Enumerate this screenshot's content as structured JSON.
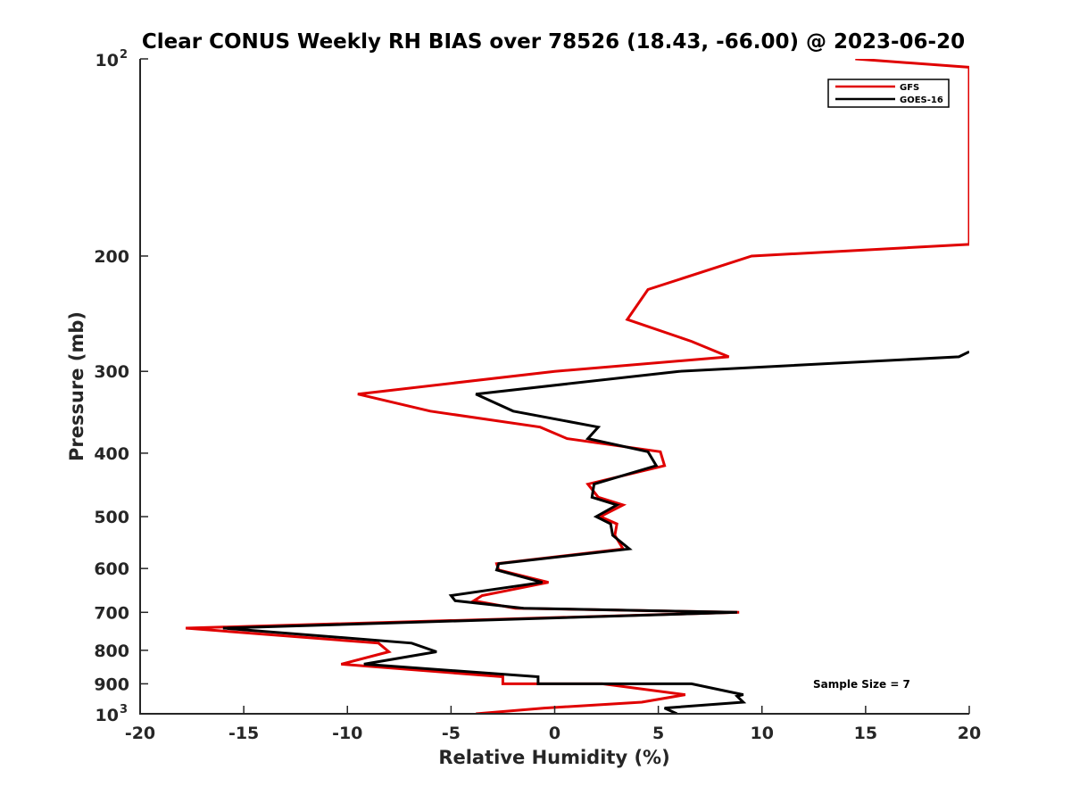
{
  "chart_data": {
    "type": "line",
    "title": "Clear CONUS Weekly RH BIAS over 78526 (18.43, -66.00) @ 2023-06-20",
    "xlabel": "Relative Humidity (%)",
    "ylabel": "Pressure (mb)",
    "xlim": [
      -20,
      20
    ],
    "ylim": [
      100,
      1000
    ],
    "y_scale": "log",
    "y_reversed": true,
    "grid": false,
    "legend_position": "top-right",
    "x_ticks": [
      "-20",
      "-15",
      "-10",
      "-5",
      "0",
      "5",
      "10",
      "15",
      "20"
    ],
    "x_tick_values": [
      -20,
      -15,
      -10,
      -5,
      0,
      5,
      10,
      15,
      20
    ],
    "y_ticks": [
      {
        "value": 100,
        "label": "10",
        "sup": "2"
      },
      {
        "value": 200,
        "label": "200",
        "sup": ""
      },
      {
        "value": 300,
        "label": "300",
        "sup": ""
      },
      {
        "value": 400,
        "label": "400",
        "sup": ""
      },
      {
        "value": 500,
        "label": "500",
        "sup": ""
      },
      {
        "value": 600,
        "label": "600",
        "sup": ""
      },
      {
        "value": 700,
        "label": "700",
        "sup": ""
      },
      {
        "value": 800,
        "label": "800",
        "sup": ""
      },
      {
        "value": 900,
        "label": "900",
        "sup": ""
      },
      {
        "value": 1000,
        "label": "10",
        "sup": "3"
      }
    ],
    "annotation": "Sample Size = 7",
    "series": [
      {
        "name": "GFS",
        "color": "#e00000",
        "points": [
          [
            14.5,
            100
          ],
          [
            20.0,
            103
          ],
          [
            20.0,
            192
          ],
          [
            9.5,
            200
          ],
          [
            4.5,
            225
          ],
          [
            3.5,
            250
          ],
          [
            6.6,
            270
          ],
          [
            8.4,
            285
          ],
          [
            0.0,
            300
          ],
          [
            -9.5,
            325
          ],
          [
            -6.0,
            345
          ],
          [
            -0.7,
            365
          ],
          [
            0.6,
            380
          ],
          [
            5.1,
            398
          ],
          [
            5.3,
            418
          ],
          [
            1.6,
            446
          ],
          [
            2.1,
            467
          ],
          [
            3.3,
            480
          ],
          [
            2.2,
            500
          ],
          [
            3.0,
            513
          ],
          [
            2.9,
            534
          ],
          [
            3.3,
            560
          ],
          [
            -2.8,
            590
          ],
          [
            -2.7,
            603
          ],
          [
            -0.3,
            630
          ],
          [
            -3.5,
            660
          ],
          [
            -3.9,
            672
          ],
          [
            -1.9,
            690
          ],
          [
            8.9,
            700
          ],
          [
            -17.8,
            740
          ],
          [
            -8.5,
            780
          ],
          [
            -8.0,
            804
          ],
          [
            -10.3,
            840
          ],
          [
            -2.5,
            878
          ],
          [
            -2.5,
            900
          ],
          [
            2.3,
            900
          ],
          [
            6.3,
            935
          ],
          [
            4.2,
            960
          ],
          [
            -0.5,
            980
          ],
          [
            -3.8,
            1000
          ]
        ]
      },
      {
        "name": "GOES-16",
        "color": "#000000",
        "points": [
          [
            20.0,
            280
          ],
          [
            19.5,
            285
          ],
          [
            6.0,
            300
          ],
          [
            -3.8,
            325
          ],
          [
            -2.0,
            345
          ],
          [
            2.1,
            365
          ],
          [
            1.6,
            380
          ],
          [
            4.5,
            398
          ],
          [
            4.9,
            418
          ],
          [
            1.9,
            446
          ],
          [
            1.8,
            467
          ],
          [
            3.0,
            480
          ],
          [
            2.0,
            500
          ],
          [
            2.7,
            513
          ],
          [
            2.8,
            534
          ],
          [
            3.6,
            560
          ],
          [
            -2.7,
            590
          ],
          [
            -2.8,
            603
          ],
          [
            -0.6,
            630
          ],
          [
            -5.0,
            660
          ],
          [
            -4.8,
            672
          ],
          [
            -1.5,
            690
          ],
          [
            8.8,
            700
          ],
          [
            -16.0,
            740
          ],
          [
            -6.9,
            780
          ],
          [
            -5.7,
            804
          ],
          [
            -9.2,
            840
          ],
          [
            -0.8,
            878
          ],
          [
            -0.8,
            900
          ],
          [
            6.6,
            900
          ],
          [
            9.1,
            935
          ],
          [
            8.8,
            940
          ],
          [
            9.1,
            960
          ],
          [
            5.3,
            980
          ],
          [
            5.9,
            1000
          ]
        ]
      }
    ]
  }
}
